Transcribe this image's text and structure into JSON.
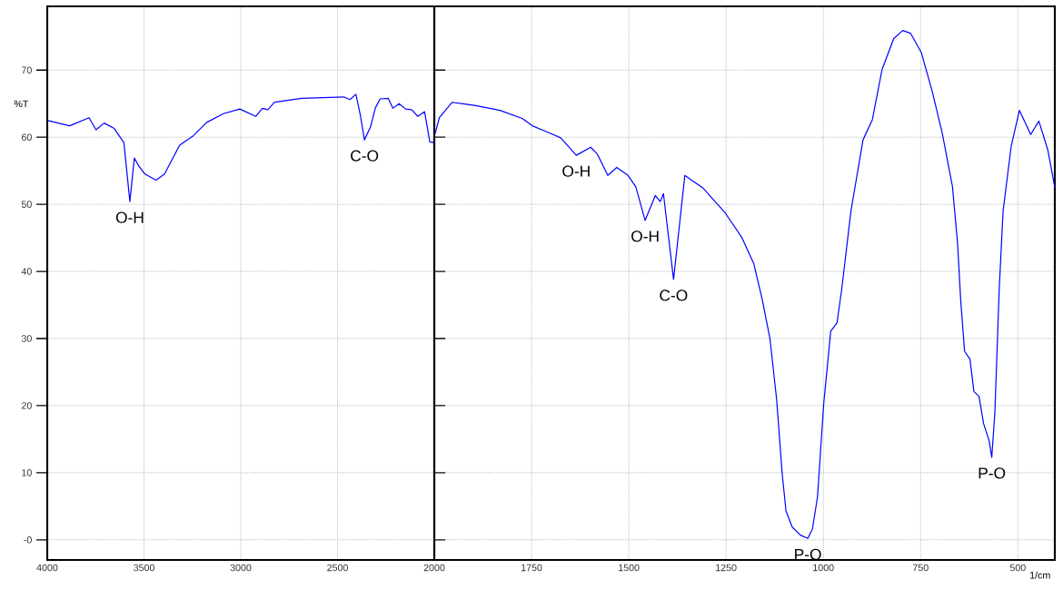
{
  "chart_data": [
    {
      "type": "line",
      "ylabel": "%T",
      "xlim": [
        4000,
        2000
      ],
      "ylim": [
        -3,
        79.5
      ],
      "xticks": [
        4000,
        3500,
        3000,
        2500
      ],
      "yticks": [
        {
          "value": 0,
          "label": "-0"
        },
        10,
        20,
        30,
        40,
        50,
        60,
        70
      ],
      "grid": true,
      "series": [
        {
          "color": "#0000ff",
          "x": [
            4000,
            3885,
            3784,
            3748,
            3706,
            3654,
            3604,
            3573,
            3550,
            3527,
            3495,
            3438,
            3394,
            3316,
            3246,
            3176,
            3090,
            3005,
            2922,
            2888,
            2860,
            2826,
            2686,
            2467,
            2436,
            2405,
            2382,
            2361,
            2330,
            2304,
            2280,
            2238,
            2214,
            2182,
            2148,
            2117,
            2085,
            2050,
            2023,
            2000
          ],
          "values": [
            62.5,
            61.7,
            62.9,
            61.1,
            62.1,
            61.3,
            59.2,
            50.4,
            56.9,
            55.7,
            54.5,
            53.6,
            54.5,
            58.8,
            60.2,
            62.2,
            63.5,
            64.2,
            63.1,
            64.3,
            64.1,
            65.2,
            65.8,
            66.0,
            65.6,
            66.4,
            63.3,
            59.6,
            61.5,
            64.4,
            65.7,
            65.8,
            64.3,
            65.0,
            64.2,
            64.1,
            63.1,
            63.8,
            59.3,
            59.2
          ]
        }
      ],
      "annotations": [
        {
          "text": "O-H",
          "x": 3573,
          "y": 50.4
        },
        {
          "text": "C-O",
          "x": 2361,
          "y": 59.6
        }
      ]
    },
    {
      "type": "line",
      "xlabel": "1/cm",
      "xlim": [
        2000,
        405
      ],
      "ylim": [
        -3,
        79.5
      ],
      "xticks": [
        2000,
        1750,
        1500,
        1250,
        1000,
        750,
        500
      ],
      "yticks": [
        0,
        10,
        20,
        30,
        40,
        50,
        60,
        70
      ],
      "grid": true,
      "tick_labels": "x",
      "series": [
        {
          "color": "#0000ff",
          "x": [
            1998,
            1987,
            1954,
            1893,
            1831,
            1774,
            1748,
            1711,
            1675,
            1635,
            1598,
            1581,
            1554,
            1531,
            1502,
            1482,
            1458,
            1432,
            1419,
            1411,
            1385,
            1356,
            1309,
            1252,
            1210,
            1179,
            1157,
            1137,
            1120,
            1106,
            1096,
            1080,
            1059,
            1040,
            1028,
            1015,
            999,
            981,
            965,
            953,
            929,
            898,
            874,
            849,
            819,
            796,
            776,
            748,
            720,
            694,
            668,
            655,
            647,
            637,
            623,
            613,
            600,
            588,
            574,
            567,
            559,
            548,
            538,
            517,
            496,
            467,
            446,
            423,
            405
          ],
          "values": [
            60.5,
            62.9,
            65.2,
            64.7,
            64.0,
            62.8,
            61.7,
            60.8,
            59.9,
            57.3,
            58.5,
            57.5,
            54.3,
            55.5,
            54.3,
            52.6,
            47.6,
            51.3,
            50.4,
            51.6,
            38.8,
            54.3,
            52.4,
            48.7,
            45.1,
            41.2,
            35.8,
            29.9,
            20.9,
            10.0,
            4.3,
            1.9,
            0.7,
            0.2,
            1.6,
            6.4,
            20.3,
            31.1,
            32.3,
            37.2,
            49.0,
            59.6,
            62.6,
            70.1,
            74.7,
            75.9,
            75.5,
            72.6,
            66.8,
            60.5,
            52.6,
            44.2,
            35.8,
            28.1,
            26.9,
            22.1,
            21.4,
            17.3,
            14.8,
            12.3,
            19.1,
            37.2,
            49.0,
            58.7,
            64.0,
            60.4,
            62.4,
            58.1,
            52.5
          ]
        }
      ],
      "annotations": [
        {
          "text": "O-H",
          "x": 1635,
          "y": 57.3
        },
        {
          "text": "O-H",
          "x": 1458,
          "y": 47.6
        },
        {
          "text": "C-O",
          "x": 1385,
          "y": 38.8
        },
        {
          "text": "P-O",
          "x": 1040,
          "y": 0.2
        },
        {
          "text": "P-O",
          "x": 567,
          "y": 12.3
        }
      ]
    }
  ]
}
